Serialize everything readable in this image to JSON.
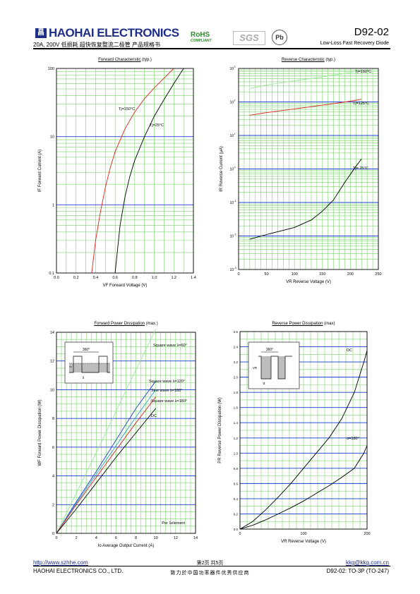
{
  "header": {
    "logo_glyph": "昌",
    "company": "HAOHAI ELECTRONICS",
    "subtitle": "20A, 200V 低损耗 超快恢复整流二极管 产品规格书",
    "rohs": "RoHS",
    "rohs_sub": "COMPLIANT",
    "sgs": "SGS",
    "pb": "Pb",
    "part": "D92-02",
    "part_desc": "Low-Loss Fast Recovery Diode"
  },
  "footer": {
    "url": "http://www.szhhe.com",
    "email": "kkg@kkg.com.cn",
    "page": "第2页    共5页",
    "company": "HAOHAI ELECTRONICS CO., LTD.",
    "slogan": "致力於中国功率器件优秀供应商",
    "package": "D92-02: TO-3P (TO-247)"
  },
  "chart_data": [
    {
      "type": "line",
      "title": "Forward Characteristic",
      "title_note": "(typ.)",
      "xlabel": "VF  Forward Voltage  (V)",
      "ylabel": "IF  Forward Current  (A)",
      "xlim": [
        0,
        1.4
      ],
      "ylim": [
        0.1,
        100
      ],
      "yscale": "log",
      "xticks": [
        "0.0",
        "0.2",
        "0.4",
        "0.6",
        "0.8",
        "1.0",
        "1.2",
        "1.4"
      ],
      "yticks": [
        "0.1",
        "1",
        "10",
        "100"
      ],
      "grid": true,
      "series": [
        {
          "name": "Tj=150°C",
          "color": "#e0221c",
          "x": [
            0.36,
            0.4,
            0.45,
            0.5,
            0.55,
            0.6,
            0.7,
            0.8,
            0.9,
            1.0,
            1.1,
            1.2
          ],
          "y": [
            0.1,
            0.3,
            0.8,
            1.8,
            3.5,
            6.0,
            13,
            23,
            36,
            52,
            72,
            100
          ]
        },
        {
          "name": "Tj=25°C",
          "color": "#000000",
          "x": [
            0.6,
            0.65,
            0.7,
            0.75,
            0.8,
            0.9,
            1.0,
            1.1,
            1.2,
            1.3
          ],
          "y": [
            0.1,
            0.5,
            1.3,
            2.6,
            4.5,
            10,
            20,
            35,
            60,
            100
          ]
        }
      ]
    },
    {
      "type": "line",
      "title": "Reverse Characteristic",
      "title_note": "(typ.)",
      "xlabel": "VR    Reverse Voltage  (V)",
      "ylabel": "IR   Reverse Current  (μA)",
      "xlim": [
        0,
        250
      ],
      "ylim": [
        0.001,
        1000
      ],
      "yscale": "log",
      "xticks": [
        "0",
        "50",
        "100",
        "150",
        "200",
        "250"
      ],
      "ytick_exponents": [
        "-3",
        "-2",
        "-1",
        "0",
        "1",
        "2",
        "3"
      ],
      "grid": true,
      "series": [
        {
          "name": "Tj=150°C",
          "color": "#9de89d",
          "x": [
            20,
            50,
            100,
            150,
            200,
            220
          ],
          "y": [
            250,
            320,
            430,
            560,
            750,
            900
          ]
        },
        {
          "name": "Tj=125°C",
          "color": "#e0221c",
          "x": [
            20,
            50,
            100,
            150,
            200,
            220
          ],
          "y": [
            40,
            48,
            62,
            80,
            105,
            120
          ]
        },
        {
          "name": "Tj= 25°C",
          "color": "#000000",
          "x": [
            20,
            50,
            100,
            130,
            150,
            170,
            190,
            210,
            220
          ],
          "y": [
            0.008,
            0.011,
            0.018,
            0.03,
            0.055,
            0.12,
            0.4,
            1.2,
            2.0
          ]
        }
      ]
    },
    {
      "type": "line",
      "title": "Forward Power Dissipation",
      "title_note": "(max.)",
      "xlabel": "Io    Average Output Current  (A)",
      "ylabel": "WF   Forward Power Dissipation   (W)",
      "xlim": [
        0,
        14
      ],
      "ylim": [
        0,
        14
      ],
      "xticks": [
        "0",
        "2",
        "4",
        "6",
        "8",
        "10",
        "12",
        "14"
      ],
      "yticks": [
        "0",
        "2",
        "4",
        "6",
        "8",
        "10",
        "12",
        "14"
      ],
      "grid": true,
      "annotation": "Per 1element",
      "inset_label": "360°",
      "inset_symbol": "λ",
      "inset_io": "Io",
      "series": [
        {
          "name": "Square wave λ=60°",
          "color": "#9de89d",
          "x": [
            0,
            2,
            4,
            6,
            8,
            10
          ],
          "y": [
            0,
            2.8,
            5.6,
            8.5,
            11.4,
            14.2
          ]
        },
        {
          "name": "Square wave λ=120°",
          "color": "#1e3fd8",
          "x": [
            0,
            2,
            4,
            6,
            8,
            10
          ],
          "y": [
            0,
            2.2,
            4.3,
            6.5,
            8.7,
            10.6
          ]
        },
        {
          "name": "Sine wave λ=180°",
          "color": "#2aa0d0",
          "x": [
            0,
            2,
            4,
            6,
            8,
            10
          ],
          "y": [
            0,
            2.1,
            4.1,
            6.1,
            8.1,
            10.0
          ]
        },
        {
          "name": "Square wave λ=180°",
          "color": "#e0221c",
          "x": [
            0,
            2,
            4,
            6,
            8,
            10
          ],
          "y": [
            0,
            2.0,
            3.9,
            5.8,
            7.7,
            9.5
          ]
        },
        {
          "name": "DC",
          "color": "#000000",
          "x": [
            0,
            2,
            4,
            6,
            8,
            10
          ],
          "y": [
            0,
            1.7,
            3.5,
            5.3,
            7.0,
            8.7
          ]
        }
      ]
    },
    {
      "type": "line",
      "title": "Reverse Power Dissipation",
      "title_note": "(max)",
      "xlabel": "VR    Reverse Voltage  (V)",
      "ylabel": "PR   Reverse Power Dissipation  (W)",
      "xlim": [
        0,
        200
      ],
      "ylim": [
        0,
        2.6
      ],
      "xticks": [
        "0",
        "100",
        "200"
      ],
      "yticks": [
        "0.0",
        "0.2",
        "0.4",
        "0.6",
        "0.8",
        "1.0",
        "1.2",
        "1.4",
        "1.6",
        "1.8",
        "2.0",
        "2.2",
        "2.4",
        "2.6"
      ],
      "grid": true,
      "inset_label": "360°",
      "inset_vr": "VR",
      "inset_alpha": "α",
      "series": [
        {
          "name": "DC",
          "color": "#000000",
          "x": [
            0,
            20,
            40,
            60,
            80,
            100,
            120,
            140,
            160,
            180,
            195,
            200
          ],
          "y": [
            0,
            0.1,
            0.25,
            0.42,
            0.6,
            0.8,
            1.0,
            1.2,
            1.45,
            1.8,
            2.2,
            2.35
          ]
        },
        {
          "name": "α=180°",
          "color": "#000000",
          "x": [
            0,
            20,
            40,
            60,
            80,
            100,
            120,
            140,
            160,
            180,
            195,
            200
          ],
          "y": [
            0,
            0.05,
            0.12,
            0.2,
            0.28,
            0.37,
            0.47,
            0.57,
            0.68,
            0.8,
            1.0,
            1.1
          ]
        }
      ]
    }
  ]
}
